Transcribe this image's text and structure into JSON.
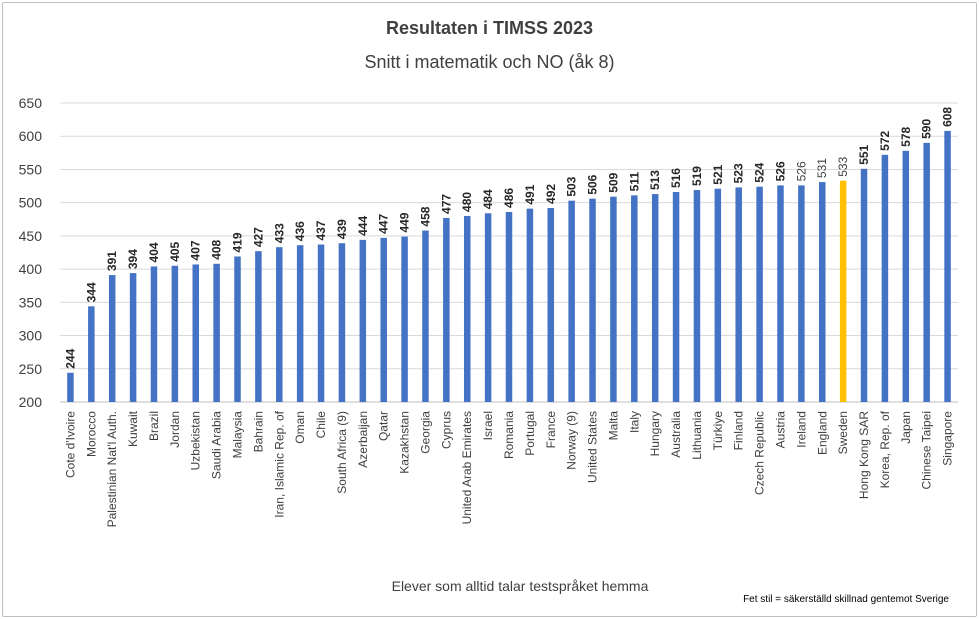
{
  "chart_data": {
    "type": "bar",
    "title": "Resultaten i TIMSS 2023",
    "subtitle": "Snitt i matematik och NO (åk 8)",
    "xlabel": "Elever som alltid talar testspråket hemma",
    "footnote": "Fet stil = säkerställd skillnad gentemot Sverige",
    "ylabel": "",
    "ylim": [
      200,
      650
    ],
    "yticks": [
      "200",
      "250",
      "300",
      "350",
      "400",
      "450",
      "500",
      "550",
      "600",
      "650"
    ],
    "grid": true,
    "colors": {
      "default": "#4472c4",
      "highlight": "#ffc000"
    },
    "highlight": "Sweden",
    "categories": [
      "Cote d'Ivoire",
      "Morocco",
      "Palestinian Nat'l Auth.",
      "Kuwait",
      "Brazil",
      "Jordan",
      "Uzbekistan",
      "Saudi Arabia",
      "Malaysia",
      "Bahrain",
      "Iran, Islamic Rep. of",
      "Oman",
      "Chile",
      "South Africa (9)",
      "Azerbaijan",
      "Qatar",
      "Kazakhstan",
      "Georgia",
      "Cyprus",
      "United Arab Emirates",
      "Israel",
      "Romania",
      "Portugal",
      "France",
      "Norway (9)",
      "United States",
      "Malta",
      "Italy",
      "Hungary",
      "Australia",
      "Lithuania",
      "Türkiye",
      "Finland",
      "Czech Republic",
      "Austria",
      "Ireland",
      "England",
      "Sweden",
      "Hong Kong SAR",
      "Korea, Rep. of",
      "Japan",
      "Chinese Taipei",
      "Singapore"
    ],
    "values": [
      244,
      344,
      391,
      394,
      404,
      405,
      407,
      408,
      419,
      427,
      433,
      436,
      437,
      439,
      444,
      447,
      449,
      458,
      477,
      480,
      484,
      486,
      491,
      492,
      503,
      506,
      509,
      511,
      513,
      516,
      519,
      521,
      523,
      524,
      526,
      526,
      531,
      533,
      551,
      572,
      578,
      590,
      608
    ],
    "value_labels": [
      "244",
      "344",
      "391",
      "394",
      "404",
      "405",
      "407",
      "408",
      "419",
      "427",
      "433",
      "436",
      "437",
      "439",
      "444",
      "447",
      "449",
      "458",
      "477",
      "480",
      "484",
      "486",
      "491",
      "492",
      "503",
      "506",
      "509",
      "511",
      "513",
      "516",
      "519",
      "521",
      "523",
      "524",
      "526",
      "526",
      "531",
      "533",
      "551",
      "572",
      "578",
      "590",
      "608"
    ],
    "bold_labels": [
      true,
      true,
      true,
      true,
      true,
      true,
      true,
      true,
      true,
      true,
      true,
      true,
      true,
      true,
      true,
      true,
      true,
      true,
      true,
      true,
      true,
      true,
      true,
      true,
      true,
      true,
      true,
      true,
      true,
      true,
      true,
      true,
      true,
      true,
      true,
      false,
      false,
      false,
      true,
      true,
      true,
      true,
      true
    ]
  }
}
